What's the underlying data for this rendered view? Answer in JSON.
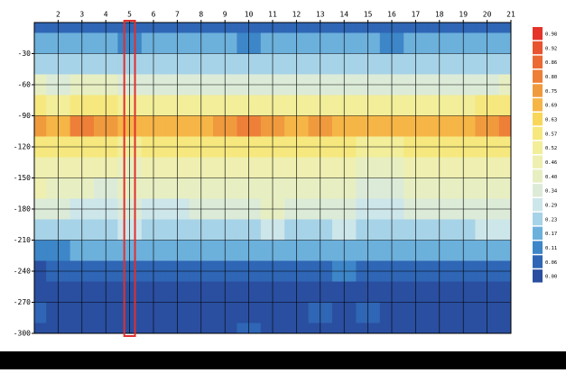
{
  "chart_data": {
    "type": "contour",
    "x": [
      1,
      2,
      3,
      4,
      5,
      6,
      7,
      8,
      9,
      10,
      11,
      12,
      13,
      14,
      15,
      16,
      17,
      18,
      19,
      20,
      21
    ],
    "y": [
      0,
      -20,
      -40,
      -60,
      -80,
      -100,
      -120,
      -140,
      -160,
      -180,
      -200,
      -220,
      -240,
      -260,
      -280,
      -300
    ],
    "z": [
      [
        0.09,
        0.08,
        0.08,
        0.09,
        0.08,
        0.08,
        0.08,
        0.09,
        0.08,
        0.08,
        0.09,
        0.08,
        0.08,
        0.08,
        0.09,
        0.08,
        0.08,
        0.08,
        0.09,
        0.08,
        0.08
      ],
      [
        0.18,
        0.17,
        0.18,
        0.17,
        0.16,
        0.17,
        0.17,
        0.18,
        0.17,
        0.16,
        0.17,
        0.17,
        0.18,
        0.17,
        0.17,
        0.16,
        0.17,
        0.17,
        0.18,
        0.17,
        0.17
      ],
      [
        0.27,
        0.26,
        0.28,
        0.27,
        0.25,
        0.26,
        0.26,
        0.27,
        0.26,
        0.25,
        0.26,
        0.26,
        0.27,
        0.26,
        0.26,
        0.25,
        0.26,
        0.27,
        0.27,
        0.26,
        0.27
      ],
      [
        0.4,
        0.38,
        0.41,
        0.4,
        0.37,
        0.38,
        0.38,
        0.39,
        0.38,
        0.37,
        0.38,
        0.38,
        0.39,
        0.38,
        0.38,
        0.37,
        0.38,
        0.39,
        0.39,
        0.38,
        0.4
      ],
      [
        0.58,
        0.56,
        0.6,
        0.58,
        0.55,
        0.55,
        0.55,
        0.56,
        0.56,
        0.55,
        0.55,
        0.55,
        0.56,
        0.55,
        0.55,
        0.55,
        0.55,
        0.56,
        0.56,
        0.57,
        0.6
      ],
      [
        0.76,
        0.74,
        0.8,
        0.76,
        0.71,
        0.72,
        0.73,
        0.74,
        0.76,
        0.8,
        0.76,
        0.74,
        0.76,
        0.73,
        0.72,
        0.71,
        0.72,
        0.73,
        0.74,
        0.77,
        0.81
      ],
      [
        0.6,
        0.58,
        0.62,
        0.59,
        0.56,
        0.57,
        0.57,
        0.58,
        0.59,
        0.6,
        0.58,
        0.57,
        0.58,
        0.57,
        0.56,
        0.56,
        0.57,
        0.57,
        0.58,
        0.6,
        0.62
      ],
      [
        0.5,
        0.47,
        0.48,
        0.46,
        0.45,
        0.46,
        0.46,
        0.46,
        0.46,
        0.46,
        0.46,
        0.47,
        0.5,
        0.46,
        0.45,
        0.45,
        0.46,
        0.46,
        0.46,
        0.47,
        0.48
      ],
      [
        0.48,
        0.41,
        0.4,
        0.39,
        0.4,
        0.4,
        0.4,
        0.4,
        0.4,
        0.4,
        0.41,
        0.4,
        0.4,
        0.4,
        0.39,
        0.39,
        0.4,
        0.4,
        0.4,
        0.41,
        0.41
      ],
      [
        0.36,
        0.34,
        0.33,
        0.33,
        0.34,
        0.33,
        0.33,
        0.34,
        0.34,
        0.36,
        0.42,
        0.35,
        0.34,
        0.34,
        0.33,
        0.33,
        0.34,
        0.34,
        0.34,
        0.35,
        0.35
      ],
      [
        0.26,
        0.27,
        0.27,
        0.27,
        0.29,
        0.28,
        0.28,
        0.28,
        0.28,
        0.28,
        0.29,
        0.28,
        0.28,
        0.33,
        0.28,
        0.28,
        0.28,
        0.28,
        0.28,
        0.29,
        0.29
      ],
      [
        0.12,
        0.15,
        0.17,
        0.17,
        0.2,
        0.18,
        0.18,
        0.18,
        0.18,
        0.18,
        0.18,
        0.18,
        0.18,
        0.18,
        0.18,
        0.18,
        0.18,
        0.18,
        0.18,
        0.2,
        0.19
      ],
      [
        0.03,
        0.06,
        0.07,
        0.07,
        0.08,
        0.07,
        0.07,
        0.07,
        0.07,
        0.07,
        0.06,
        0.07,
        0.07,
        0.12,
        0.07,
        0.07,
        0.07,
        0.07,
        0.07,
        0.08,
        0.08
      ],
      [
        0.02,
        0.04,
        0.04,
        0.04,
        0.04,
        0.04,
        0.04,
        0.04,
        0.04,
        0.04,
        0.04,
        0.04,
        0.04,
        0.04,
        0.04,
        0.04,
        0.04,
        0.04,
        0.04,
        0.04,
        0.04
      ],
      [
        0.08,
        0.03,
        0.03,
        0.03,
        0.03,
        0.03,
        0.03,
        0.03,
        0.03,
        0.03,
        0.03,
        0.03,
        0.08,
        0.03,
        0.08,
        0.03,
        0.03,
        0.03,
        0.03,
        0.03,
        0.03
      ],
      [
        0.03,
        0.03,
        0.03,
        0.03,
        0.03,
        0.03,
        0.03,
        0.03,
        0.03,
        0.09,
        0.03,
        0.03,
        0.03,
        0.03,
        0.03,
        0.03,
        0.03,
        0.03,
        0.03,
        0.03,
        0.03
      ]
    ],
    "xlim": [
      1,
      21
    ],
    "xticks": [
      2,
      3,
      4,
      5,
      6,
      7,
      8,
      9,
      10,
      11,
      12,
      13,
      14,
      15,
      16,
      17,
      18,
      19,
      20,
      21
    ],
    "ylim": [
      -300,
      0
    ],
    "yticks": [
      -30,
      -60,
      -90,
      -120,
      -150,
      -180,
      -210,
      -240,
      -270,
      -300
    ],
    "levels": [
      {
        "value": 0,
        "label": "0.00"
      },
      0.06,
      0.11,
      0.17,
      0.23,
      0.29,
      0.34,
      {
        "value": 0.4,
        "label": "0.40"
      },
      0.46,
      0.52,
      0.57,
      0.63,
      0.69,
      0.75,
      {
        "value": 0.8,
        "label": "0.80"
      },
      0.86,
      0.92,
      0.98
    ],
    "level_colors": [
      "#2a4fa0",
      "#2f66b5",
      "#3d86c8",
      "#6cb0dc",
      "#a7d3e8",
      "#cde6ea",
      "#dcebd8",
      "#e7efc2",
      "#eeefb0",
      "#f2ee9a",
      "#f6e87e",
      "#f8d65a",
      "#f5b547",
      "#f09a3e",
      "#ed7f38",
      "#eb6a33",
      "#e8542f",
      "#e5332a"
    ],
    "grid": true,
    "highlight_x": 5,
    "highlight_color": "#e03030"
  }
}
